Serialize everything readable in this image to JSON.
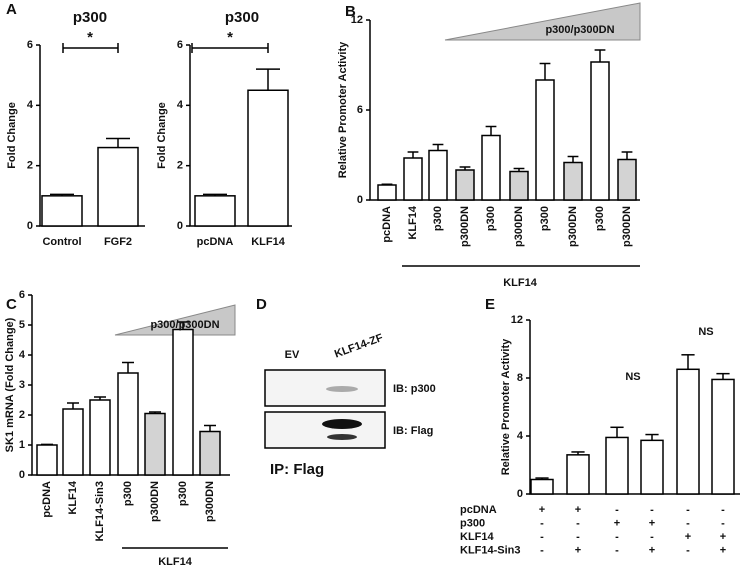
{
  "panel_labels": [
    "A",
    "B",
    "C",
    "D",
    "E"
  ],
  "chart_data": [
    {
      "type": "bar",
      "title": "p300",
      "ylabel": "Fold Change",
      "categories": [
        "Control",
        "FGF2"
      ],
      "values": [
        1.0,
        2.6
      ],
      "errors": [
        0.05,
        0.3
      ],
      "colors": [
        "#ffffff",
        "#ffffff"
      ],
      "ylim": [
        0,
        6
      ],
      "yticks": [
        0,
        2,
        4,
        6
      ],
      "annotations": [
        "*"
      ]
    },
    {
      "type": "bar",
      "title": "p300",
      "ylabel": "Fold Change",
      "categories": [
        "pcDNA",
        "KLF14"
      ],
      "values": [
        1.0,
        4.5
      ],
      "errors": [
        0.05,
        0.7
      ],
      "colors": [
        "#ffffff",
        "#ffffff"
      ],
      "ylim": [
        0,
        6
      ],
      "yticks": [
        0,
        2,
        4,
        6
      ],
      "annotations": [
        "*"
      ]
    },
    {
      "type": "bar",
      "ylabel": "Relative Promoter Activity",
      "categories": [
        "pcDNA",
        "KLF14",
        "p300",
        "p300DN",
        "p300",
        "p300DN",
        "p300",
        "p300DN",
        "p300",
        "p300DN"
      ],
      "values": [
        1.0,
        2.8,
        3.3,
        2.0,
        4.3,
        1.9,
        8.0,
        2.5,
        9.2,
        2.7
      ],
      "errors": [
        0.05,
        0.4,
        0.4,
        0.2,
        0.6,
        0.2,
        1.1,
        0.4,
        0.8,
        0.5
      ],
      "colors": [
        "#ffffff",
        "#ffffff",
        "#ffffff",
        "#d3d3d3",
        "#ffffff",
        "#d3d3d3",
        "#ffffff",
        "#d3d3d3",
        "#ffffff",
        "#d3d3d3"
      ],
      "ylim": [
        0,
        12
      ],
      "yticks": [
        0,
        6,
        12
      ],
      "annotations": [
        "p300/p300DN"
      ],
      "group_label": "KLF14"
    },
    {
      "type": "bar",
      "ylabel": "SK1 mRNA (Fold Change)",
      "categories": [
        "pcDNA",
        "KLF14",
        "KLF14-Sin3",
        "p300",
        "p300DN",
        "p300",
        "p300DN"
      ],
      "values": [
        1.0,
        2.2,
        2.5,
        3.4,
        2.05,
        4.85,
        1.45
      ],
      "errors": [
        0.02,
        0.2,
        0.1,
        0.35,
        0.05,
        0.25,
        0.2
      ],
      "colors": [
        "#ffffff",
        "#ffffff",
        "#ffffff",
        "#ffffff",
        "#d3d3d3",
        "#ffffff",
        "#d3d3d3"
      ],
      "ylim": [
        0,
        6
      ],
      "yticks": [
        0,
        1,
        2,
        3,
        4,
        5,
        6
      ],
      "annotations": [
        "p300/p300DN"
      ],
      "group_label": "KLF14"
    },
    {
      "type": "bar",
      "ylabel": "Relative Promoter Activity",
      "values": [
        1.0,
        2.7,
        3.9,
        3.7,
        8.6,
        7.9
      ],
      "errors": [
        0.1,
        0.2,
        0.7,
        0.4,
        1.0,
        0.4
      ],
      "colors": [
        "#ffffff",
        "#ffffff",
        "#ffffff",
        "#ffffff",
        "#ffffff",
        "#ffffff"
      ],
      "ylim": [
        0,
        12
      ],
      "yticks": [
        0,
        4,
        8,
        12
      ],
      "annotations": [
        "NS",
        "NS"
      ],
      "rows": [
        {
          "label": "pcDNA",
          "signs": [
            "+",
            "+",
            "-",
            "-",
            "-",
            "-"
          ]
        },
        {
          "label": "p300",
          "signs": [
            "-",
            "-",
            "+",
            "+",
            "-",
            "-"
          ]
        },
        {
          "label": "KLF14",
          "signs": [
            "-",
            "-",
            "-",
            "-",
            "+",
            "+"
          ]
        },
        {
          "label": "KLF14-Sin3",
          "signs": [
            "-",
            "+",
            "-",
            "+",
            "-",
            "+"
          ]
        }
      ]
    }
  ],
  "blot": {
    "lanes": [
      "EV",
      "KLF14-ZF"
    ],
    "bands": [
      "IB: p300",
      "IB: Flag"
    ],
    "caption": "IP: Flag"
  }
}
